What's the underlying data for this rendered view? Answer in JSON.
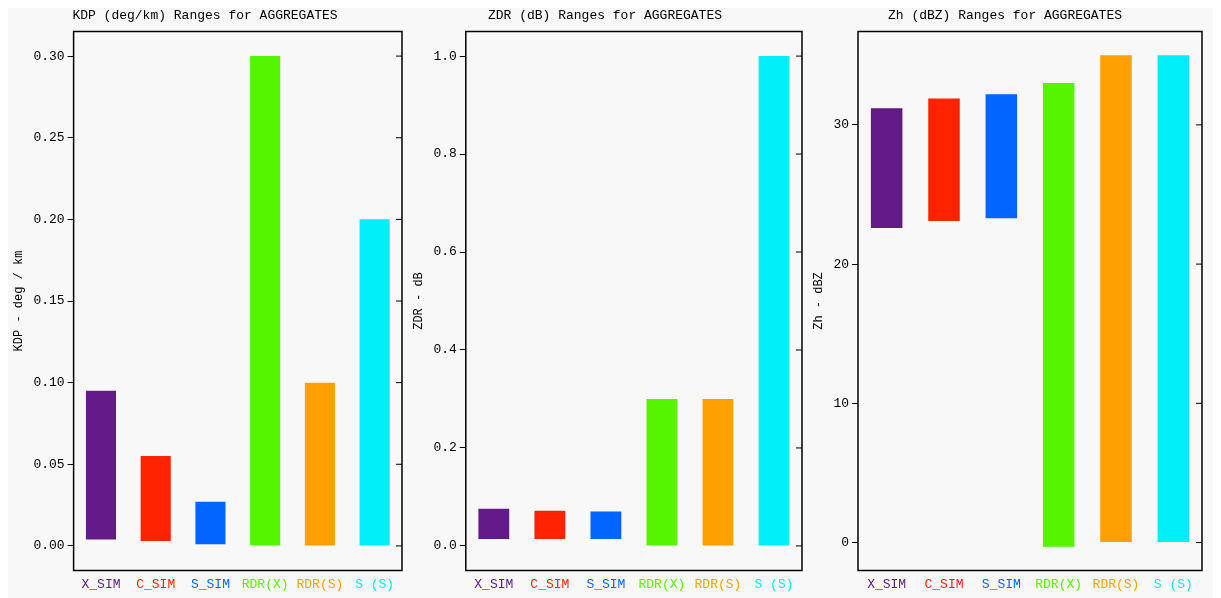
{
  "chart_data": [
    {
      "type": "bar",
      "title": "KDP (deg/km) Ranges for AGGREGATES",
      "ylabel": "KDP - deg / km",
      "categories": [
        "X_SIM",
        "C_SIM",
        "S_SIM",
        "RDR(X)",
        "RDR(S)",
        "S (S)"
      ],
      "base": [
        0.004,
        0.003,
        0.001,
        0,
        0,
        0
      ],
      "values": [
        0.091,
        0.052,
        0.026,
        0.3,
        0.1,
        0.2
      ],
      "colors": [
        "#621a87",
        "#ff2200",
        "#0066ff",
        "#55f500",
        "#ffa000",
        "#00eef8"
      ],
      "ylim": [
        -0.015,
        0.315
      ],
      "yticks": [
        {
          "value": 0,
          "label": "0.00"
        },
        {
          "value": 0.05,
          "label": "0.05"
        },
        {
          "value": 0.1,
          "label": "0.10"
        },
        {
          "value": 0.15,
          "label": "0.15"
        },
        {
          "value": 0.2,
          "label": "0.20"
        },
        {
          "value": 0.25,
          "label": "0.25"
        },
        {
          "value": 0.3,
          "label": "0.30"
        }
      ],
      "grid": false,
      "legend": false
    },
    {
      "type": "bar",
      "title": "ZDR (dB) Ranges for AGGREGATES",
      "ylabel": "ZDR - dB",
      "categories": [
        "X_SIM",
        "C_SIM",
        "S_SIM",
        "RDR(X)",
        "RDR(S)",
        "S (S)"
      ],
      "base": [
        0.014,
        0.014,
        0.014,
        0,
        0,
        0
      ],
      "values": [
        0.062,
        0.058,
        0.056,
        0.3,
        0.3,
        1.0
      ],
      "colors": [
        "#621a87",
        "#ff2200",
        "#0066ff",
        "#55f500",
        "#ffa000",
        "#00eef8"
      ],
      "ylim": [
        -0.05,
        1.05
      ],
      "yticks": [
        {
          "value": 0,
          "label": "0.0"
        },
        {
          "value": 0.2,
          "label": "0.2"
        },
        {
          "value": 0.4,
          "label": "0.4"
        },
        {
          "value": 0.6,
          "label": "0.6"
        },
        {
          "value": 0.8,
          "label": "0.8"
        },
        {
          "value": 1,
          "label": "1.0"
        }
      ],
      "grid": false,
      "legend": false
    },
    {
      "type": "bar",
      "title": "Zh (dBZ) Ranges for AGGREGATES",
      "ylabel": "Zh - dBZ",
      "categories": [
        "X_SIM",
        "C_SIM",
        "S_SIM",
        "RDR(X)",
        "RDR(S)",
        "S (S)"
      ],
      "base": [
        22.6,
        23.1,
        23.3,
        -0.3,
        0,
        0
      ],
      "values": [
        8.6,
        8.8,
        8.9,
        33.3,
        35,
        35
      ],
      "colors": [
        "#621a87",
        "#ff2200",
        "#0066ff",
        "#55f500",
        "#ffa000",
        "#00eef8"
      ],
      "ylim": [
        -2,
        36.7
      ],
      "yticks": [
        0,
        10,
        20,
        30
      ],
      "grid": false,
      "legend": false
    }
  ]
}
